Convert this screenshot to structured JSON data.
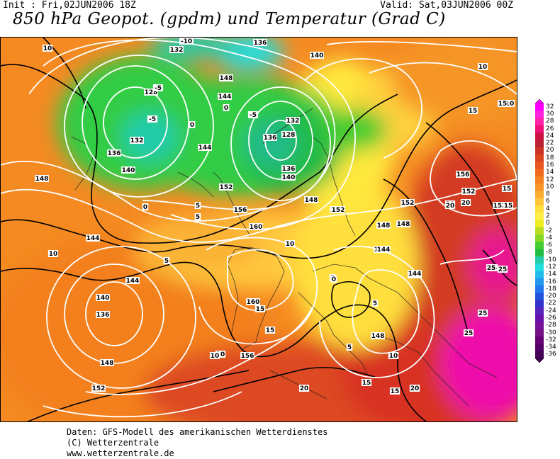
{
  "header": {
    "init": "Init : Fri,02JUN2006 18Z",
    "valid": "Valid: Sat,03JUN2006 00Z",
    "title": "850 hPa Geopot. (gpdm) und Temperatur (Grad C)"
  },
  "map": {
    "region": "Europe / North Atlantic",
    "geopotential_labels": [
      "132",
      "136",
      "140",
      "144",
      "148",
      "128",
      "152",
      "156",
      "160"
    ],
    "temperature_labels": [
      "-10",
      "-5",
      "0",
      "5",
      "10",
      "15",
      "20",
      "25"
    ],
    "contour_labels": [
      {
        "text": "10"
      },
      {
        "text": "-10"
      },
      {
        "text": "132"
      },
      {
        "text": "140"
      },
      {
        "text": "136"
      },
      {
        "text": "148"
      },
      {
        "text": "128"
      },
      {
        "text": "-5"
      },
      {
        "text": "144"
      },
      {
        "text": "0"
      },
      {
        "text": "132"
      },
      {
        "text": "136"
      },
      {
        "text": "144"
      },
      {
        "text": "-5"
      },
      {
        "text": "-5"
      },
      {
        "text": "128"
      },
      {
        "text": "132"
      },
      {
        "text": "0"
      },
      {
        "text": "140"
      },
      {
        "text": "136"
      },
      {
        "text": "140"
      },
      {
        "text": "0"
      },
      {
        "text": "152"
      },
      {
        "text": "10"
      },
      {
        "text": "10"
      },
      {
        "text": "148"
      },
      {
        "text": "5"
      },
      {
        "text": "156"
      },
      {
        "text": "144"
      },
      {
        "text": "148"
      },
      {
        "text": "152"
      },
      {
        "text": "5"
      },
      {
        "text": "5"
      },
      {
        "text": "160"
      },
      {
        "text": "10"
      },
      {
        "text": "144"
      },
      {
        "text": "5"
      },
      {
        "text": "0"
      },
      {
        "text": "144"
      },
      {
        "text": "140"
      },
      {
        "text": "136"
      },
      {
        "text": "160"
      },
      {
        "text": "15"
      },
      {
        "text": "15"
      },
      {
        "text": "148"
      },
      {
        "text": "10"
      },
      {
        "text": "156"
      },
      {
        "text": "10"
      },
      {
        "text": "152"
      },
      {
        "text": "144"
      },
      {
        "text": "5"
      },
      {
        "text": "148"
      },
      {
        "text": "10"
      },
      {
        "text": "15"
      },
      {
        "text": "20"
      },
      {
        "text": "20"
      },
      {
        "text": "20"
      },
      {
        "text": "152"
      },
      {
        "text": "15"
      },
      {
        "text": "15"
      },
      {
        "text": "152"
      },
      {
        "text": "156"
      },
      {
        "text": "20"
      },
      {
        "text": "20"
      },
      {
        "text": "15"
      },
      {
        "text": "152"
      },
      {
        "text": "15"
      },
      {
        "text": "148"
      },
      {
        "text": "144"
      },
      {
        "text": "25"
      },
      {
        "text": "25"
      },
      {
        "text": "25"
      },
      {
        "text": "25"
      },
      {
        "text": "10"
      },
      {
        "text": "5"
      },
      {
        "text": "10"
      },
      {
        "text": "15"
      },
      {
        "text": "20"
      },
      {
        "text": "136"
      },
      {
        "text": "128"
      },
      {
        "text": "144"
      },
      {
        "text": "152"
      },
      {
        "text": "148"
      },
      {
        "text": "25"
      }
    ]
  },
  "colorbar": {
    "labels": [
      "32",
      "30",
      "28",
      "26",
      "24",
      "22",
      "20",
      "18",
      "16",
      "14",
      "12",
      "10",
      "8",
      "6",
      "4",
      "2",
      "0",
      "-2",
      "-4",
      "-6",
      "-8",
      "-10",
      "-12",
      "-14",
      "-16",
      "-18",
      "-20",
      "-22",
      "-24",
      "-26",
      "-28",
      "-30",
      "-32",
      "-34",
      "-36"
    ],
    "colors": [
      "#ff00ff",
      "#ff22dd",
      "#ff22aa",
      "#ee1177",
      "#cc1144",
      "#bb2233",
      "#cc3322",
      "#dd4422",
      "#e85520",
      "#f06b1e",
      "#f58020",
      "#f8962a",
      "#fbac30",
      "#ffc63c",
      "#ffdf3c",
      "#ffee44",
      "#eeee22",
      "#bbdd22",
      "#88d822",
      "#44cc33",
      "#22bb44",
      "#22ccaa",
      "#22dddd",
      "#22bbee",
      "#2299ee",
      "#2277ee",
      "#2255dd",
      "#3333cc",
      "#5522bb",
      "#6611aa",
      "#771199",
      "#771188",
      "#660077",
      "#550066",
      "#440055"
    ]
  },
  "credits": {
    "line1": "Daten: GFS-Modell des amerikanischen Wetterdienstes",
    "line2": "(C) Wetterzentrale",
    "line3": "www.wetterzentrale.de"
  }
}
